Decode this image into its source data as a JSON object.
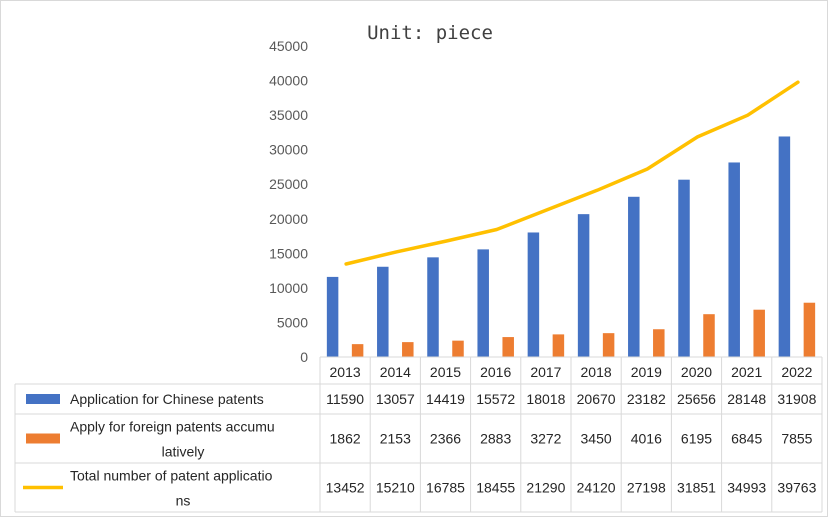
{
  "chart_data": {
    "type": "bar",
    "title": "Unit: piece",
    "categories": [
      "2013",
      "2014",
      "2015",
      "2016",
      "2017",
      "2018",
      "2019",
      "2020",
      "2021",
      "2022"
    ],
    "ylim": [
      0,
      45000
    ],
    "yticks": [
      0,
      5000,
      10000,
      15000,
      20000,
      25000,
      30000,
      35000,
      40000,
      45000
    ],
    "grid": false,
    "legend": "data table below chart",
    "series": [
      {
        "name": "Application for Chinese patents",
        "type": "bar",
        "color": "#4472c4",
        "values": [
          11590,
          13057,
          14419,
          15572,
          18018,
          20670,
          23182,
          25656,
          28148,
          31908
        ]
      },
      {
        "name": "Apply for foreign patents accumulatively",
        "legend_lines": [
          "Apply for foreign patents accumu",
          "latively"
        ],
        "type": "bar",
        "color": "#ed7d31",
        "values": [
          1862,
          2153,
          2366,
          2883,
          3272,
          3450,
          4016,
          6195,
          6845,
          7855
        ]
      },
      {
        "name": "Total number of patent applications",
        "legend_lines": [
          "Total number of patent applicatio",
          "ns"
        ],
        "type": "line",
        "color": "#ffc000",
        "values": [
          13452,
          15210,
          16785,
          18455,
          21290,
          24120,
          27198,
          31851,
          34993,
          39763
        ]
      }
    ]
  }
}
